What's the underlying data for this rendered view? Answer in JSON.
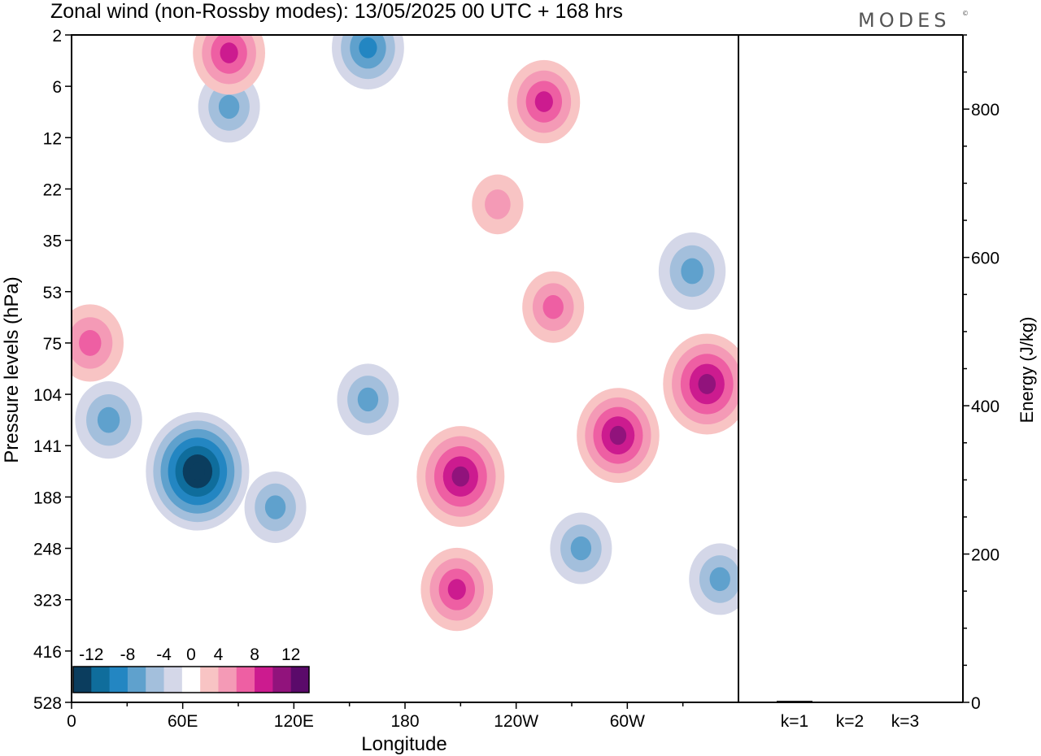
{
  "title": "Zonal wind (non-Rossby modes):  13/05/2025  00 UTC  + 168 hrs",
  "logo": {
    "text": "MODES",
    "mark": "©"
  },
  "colors": {
    "levels_hex": [
      "#0b3d5e",
      "#0f6d9c",
      "#2386c2",
      "#5fa1cd",
      "#a3bfdc",
      "#d4d7e8",
      "#ffffff",
      "#f8c4c4",
      "#f49ab6",
      "#ee5fa3",
      "#cc1b8f",
      "#91137c",
      "#5a0a6a"
    ]
  },
  "chart_data": [
    {
      "type": "heatmap",
      "title": "Zonal wind (non-Rossby modes):  13/05/2025  00 UTC  + 168 hrs",
      "xlabel": "Longitude",
      "ylabel": "Pressure levels (hPa)",
      "x_ticks": [
        "0",
        "60E",
        "120E",
        "180",
        "120W",
        "60W"
      ],
      "x_range": [
        0,
        360
      ],
      "y_ticks": [
        "2",
        "6",
        "12",
        "22",
        "35",
        "53",
        "75",
        "104",
        "141",
        "188",
        "248",
        "323",
        "416",
        "528"
      ],
      "y_axis_inverted": true,
      "colorbar": {
        "tick_labels": [
          "-12",
          "-8",
          "-4",
          "0",
          "4",
          "8",
          "12"
        ],
        "levels": [
          -14,
          -12,
          -10,
          -8,
          -6,
          -4,
          -2,
          2,
          4,
          6,
          8,
          10,
          12,
          14
        ]
      },
      "features": [
        {
          "lon": 68,
          "lev": 8.5,
          "value": -13
        },
        {
          "lon": 20,
          "lev": 7.5,
          "value": -6
        },
        {
          "lon": 110,
          "lev": 9.2,
          "value": -5
        },
        {
          "lon": 160,
          "lev": 7.1,
          "value": -5
        },
        {
          "lon": 210,
          "lev": 8.6,
          "value": 10
        },
        {
          "lon": 208,
          "lev": 10.8,
          "value": 7
        },
        {
          "lon": 295,
          "lev": 7.8,
          "value": 9
        },
        {
          "lon": 343,
          "lev": 6.8,
          "value": 10
        },
        {
          "lon": 275,
          "lev": 10.0,
          "value": -5
        },
        {
          "lon": 350,
          "lev": 10.6,
          "value": -5
        },
        {
          "lon": 255,
          "lev": 1.3,
          "value": 7
        },
        {
          "lon": 160,
          "lev": 0.25,
          "value": -7
        },
        {
          "lon": 10,
          "lev": 6.0,
          "value": 6
        },
        {
          "lon": 85,
          "lev": 1.4,
          "value": -5
        },
        {
          "lon": 335,
          "lev": 4.6,
          "value": -6
        },
        {
          "lon": 260,
          "lev": 5.3,
          "value": 5
        },
        {
          "lon": 230,
          "lev": 3.3,
          "value": 3
        },
        {
          "lon": 85,
          "lev": 0.35,
          "value": 7
        }
      ]
    },
    {
      "type": "bar",
      "title": "",
      "xlabel": "",
      "ylabel": "Energy (J/kg)",
      "categories": [
        "k=1",
        "k=2",
        "k=3"
      ],
      "values": [
        2,
        1,
        1
      ],
      "ylim": [
        0,
        900
      ],
      "y_ticks": [
        "0",
        "200",
        "400",
        "600",
        "800"
      ]
    }
  ]
}
